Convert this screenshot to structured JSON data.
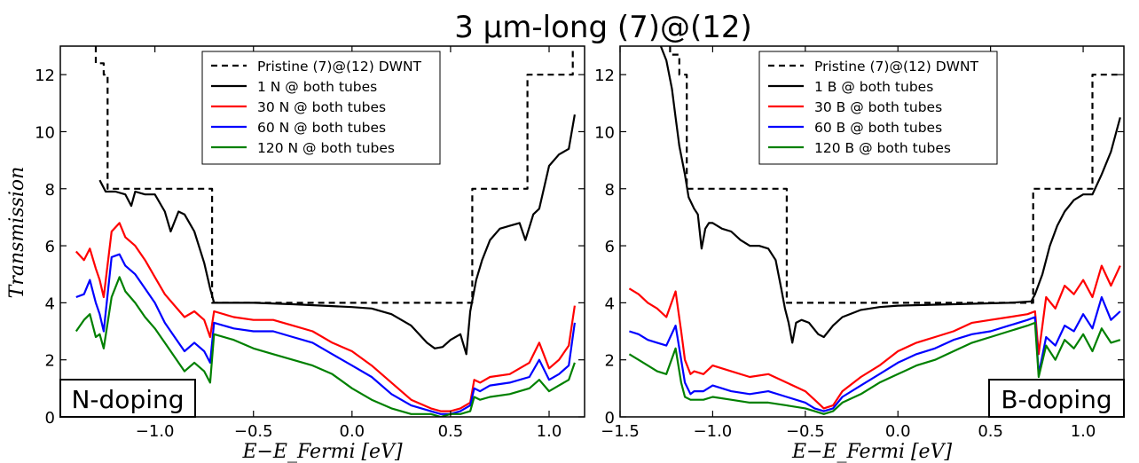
{
  "figure": {
    "title": "3 μm-long (7)@(12)",
    "ylabel": "Transmission",
    "xlabel": "E−E_Fermi [eV]"
  },
  "chart_data": [
    {
      "type": "line",
      "panel_label": "N-doping",
      "xlim": [
        -1.48,
        1.18
      ],
      "ylim": [
        0,
        13
      ],
      "xticks": [
        -1.0,
        -0.5,
        0.0,
        0.5,
        1.0
      ],
      "xtick_labels": [
        "−1.0",
        "−0.5",
        "0.0",
        "0.5",
        "1.0"
      ],
      "yticks": [
        0,
        2,
        4,
        6,
        8,
        10,
        12
      ],
      "grid": false,
      "legend_position": "top-center",
      "series": [
        {
          "name": "Pristine (7)@(12) DWNT",
          "color": "#000000",
          "dash": true,
          "x": [
            -1.3,
            -1.3,
            -1.26,
            -1.26,
            -1.24,
            -1.24,
            -0.71,
            -0.71,
            0.61,
            0.61,
            0.89,
            0.89,
            1.12,
            1.12
          ],
          "y": [
            13,
            12.4,
            12.4,
            12,
            12,
            8,
            8,
            4,
            4,
            8,
            8,
            12,
            12,
            13
          ]
        },
        {
          "name": "1 N @ both tubes",
          "color": "#000000",
          "dash": false,
          "x": [
            -1.28,
            -1.25,
            -1.2,
            -1.15,
            -1.12,
            -1.1,
            -1.05,
            -1.0,
            -0.95,
            -0.92,
            -0.88,
            -0.85,
            -0.8,
            -0.75,
            -0.72,
            -0.7,
            -0.5,
            -0.3,
            0.0,
            0.1,
            0.2,
            0.3,
            0.38,
            0.42,
            0.46,
            0.5,
            0.55,
            0.58,
            0.6,
            0.63,
            0.66,
            0.7,
            0.75,
            0.8,
            0.85,
            0.88,
            0.92,
            0.95,
            1.0,
            1.05,
            1.1,
            1.13
          ],
          "y": [
            8.3,
            7.9,
            7.9,
            7.8,
            7.4,
            7.9,
            7.8,
            7.8,
            7.2,
            6.5,
            7.2,
            7.1,
            6.5,
            5.4,
            4.5,
            4.0,
            4.0,
            3.95,
            3.85,
            3.8,
            3.6,
            3.2,
            2.6,
            2.4,
            2.45,
            2.7,
            2.9,
            2.2,
            3.7,
            4.8,
            5.5,
            6.2,
            6.6,
            6.7,
            6.8,
            6.2,
            7.1,
            7.3,
            8.8,
            9.2,
            9.4,
            10.6
          ]
        },
        {
          "name": "30 N @ both tubes",
          "color": "#ff0000",
          "dash": false,
          "x": [
            -1.4,
            -1.36,
            -1.33,
            -1.3,
            -1.28,
            -1.26,
            -1.22,
            -1.18,
            -1.15,
            -1.1,
            -1.05,
            -1.0,
            -0.95,
            -0.9,
            -0.85,
            -0.8,
            -0.75,
            -0.72,
            -0.7,
            -0.6,
            -0.5,
            -0.4,
            -0.3,
            -0.2,
            -0.1,
            0.0,
            0.1,
            0.2,
            0.3,
            0.4,
            0.45,
            0.5,
            0.55,
            0.6,
            0.62,
            0.65,
            0.7,
            0.8,
            0.9,
            0.95,
            1.0,
            1.05,
            1.1,
            1.13
          ],
          "y": [
            5.8,
            5.5,
            5.9,
            5.2,
            4.8,
            4.2,
            6.5,
            6.8,
            6.3,
            6.0,
            5.5,
            4.9,
            4.3,
            3.9,
            3.5,
            3.7,
            3.4,
            2.8,
            3.7,
            3.5,
            3.4,
            3.4,
            3.2,
            3.0,
            2.6,
            2.3,
            1.8,
            1.2,
            0.6,
            0.3,
            0.2,
            0.2,
            0.3,
            0.5,
            1.3,
            1.2,
            1.4,
            1.5,
            1.9,
            2.6,
            1.7,
            2.0,
            2.5,
            3.9
          ]
        },
        {
          "name": "60 N @ both tubes",
          "color": "#0000ff",
          "dash": false,
          "x": [
            -1.4,
            -1.36,
            -1.33,
            -1.3,
            -1.28,
            -1.26,
            -1.22,
            -1.18,
            -1.15,
            -1.1,
            -1.05,
            -1.0,
            -0.95,
            -0.9,
            -0.85,
            -0.8,
            -0.75,
            -0.72,
            -0.7,
            -0.6,
            -0.5,
            -0.4,
            -0.3,
            -0.2,
            -0.1,
            0.0,
            0.1,
            0.2,
            0.3,
            0.4,
            0.45,
            0.5,
            0.55,
            0.6,
            0.62,
            0.65,
            0.7,
            0.8,
            0.9,
            0.95,
            1.0,
            1.05,
            1.1,
            1.13
          ],
          "y": [
            4.2,
            4.3,
            4.8,
            4.0,
            3.6,
            3.0,
            5.6,
            5.7,
            5.3,
            5.0,
            4.5,
            4.0,
            3.3,
            2.8,
            2.3,
            2.6,
            2.3,
            1.9,
            3.3,
            3.1,
            3.0,
            3.0,
            2.8,
            2.6,
            2.2,
            1.8,
            1.4,
            0.8,
            0.4,
            0.2,
            0.1,
            0.1,
            0.2,
            0.4,
            1.0,
            0.9,
            1.1,
            1.2,
            1.4,
            2.0,
            1.3,
            1.5,
            1.8,
            3.3
          ]
        },
        {
          "name": "120 N @ both tubes",
          "color": "#008000",
          "dash": false,
          "x": [
            -1.4,
            -1.36,
            -1.33,
            -1.3,
            -1.28,
            -1.26,
            -1.22,
            -1.18,
            -1.15,
            -1.1,
            -1.05,
            -1.0,
            -0.95,
            -0.9,
            -0.85,
            -0.8,
            -0.75,
            -0.72,
            -0.7,
            -0.6,
            -0.5,
            -0.4,
            -0.3,
            -0.2,
            -0.1,
            0.0,
            0.1,
            0.2,
            0.3,
            0.4,
            0.45,
            0.5,
            0.55,
            0.6,
            0.62,
            0.65,
            0.7,
            0.8,
            0.9,
            0.95,
            1.0,
            1.05,
            1.1,
            1.13
          ],
          "y": [
            3.0,
            3.4,
            3.6,
            2.8,
            2.9,
            2.4,
            4.2,
            4.9,
            4.4,
            4.0,
            3.5,
            3.1,
            2.6,
            2.1,
            1.6,
            1.9,
            1.6,
            1.2,
            2.9,
            2.7,
            2.4,
            2.2,
            2.0,
            1.8,
            1.5,
            1.0,
            0.6,
            0.3,
            0.1,
            0.1,
            0.0,
            0.1,
            0.1,
            0.2,
            0.7,
            0.6,
            0.7,
            0.8,
            1.0,
            1.3,
            0.9,
            1.1,
            1.3,
            1.9
          ]
        }
      ]
    },
    {
      "type": "line",
      "panel_label": "B-doping",
      "xlim": [
        -1.5,
        1.22
      ],
      "ylim": [
        0,
        13
      ],
      "xticks": [
        -1.5,
        -1.0,
        -0.5,
        0.0,
        0.5,
        1.0
      ],
      "xtick_labels": [
        "−1.5",
        "−1.0",
        "−0.5",
        "0.0",
        "0.5",
        "1.0"
      ],
      "yticks": [
        0,
        2,
        4,
        6,
        8,
        10,
        12
      ],
      "grid": false,
      "legend_position": "top-center",
      "series": [
        {
          "name": "Pristine (7)@(12) DWNT",
          "color": "#000000",
          "dash": true,
          "x": [
            -1.23,
            -1.23,
            -1.18,
            -1.18,
            -1.14,
            -1.14,
            -0.6,
            -0.6,
            0.73,
            0.73,
            1.05,
            1.05,
            1.2
          ],
          "y": [
            13,
            12.7,
            12.7,
            12,
            12,
            8,
            8,
            4,
            4,
            8,
            8,
            12,
            12
          ]
        },
        {
          "name": "1 B @ both tubes",
          "color": "#000000",
          "dash": false,
          "x": [
            -1.28,
            -1.25,
            -1.22,
            -1.2,
            -1.18,
            -1.15,
            -1.13,
            -1.1,
            -1.08,
            -1.06,
            -1.04,
            -1.02,
            -1.0,
            -0.95,
            -0.9,
            -0.85,
            -0.8,
            -0.75,
            -0.7,
            -0.66,
            -0.63,
            -0.61,
            -0.59,
            -0.57,
            -0.55,
            -0.52,
            -0.48,
            -0.43,
            -0.4,
            -0.35,
            -0.3,
            -0.2,
            -0.1,
            0.0,
            0.3,
            0.6,
            0.72,
            0.74,
            0.78,
            0.82,
            0.86,
            0.9,
            0.95,
            1.0,
            1.05,
            1.1,
            1.15,
            1.2
          ],
          "y": [
            13,
            12.5,
            11.5,
            10.5,
            9.5,
            8.5,
            7.7,
            7.3,
            7.1,
            5.9,
            6.6,
            6.8,
            6.8,
            6.6,
            6.5,
            6.2,
            6.0,
            6.0,
            5.9,
            5.5,
            4.5,
            3.8,
            3.3,
            2.6,
            3.3,
            3.4,
            3.3,
            2.9,
            2.8,
            3.2,
            3.5,
            3.75,
            3.85,
            3.9,
            3.95,
            4.0,
            4.05,
            4.3,
            5.0,
            6.0,
            6.7,
            7.2,
            7.6,
            7.8,
            7.8,
            8.5,
            9.3,
            10.5
          ]
        },
        {
          "name": "30 B @ both tubes",
          "color": "#ff0000",
          "dash": false,
          "x": [
            -1.45,
            -1.4,
            -1.35,
            -1.3,
            -1.25,
            -1.2,
            -1.17,
            -1.15,
            -1.12,
            -1.1,
            -1.05,
            -1.0,
            -0.9,
            -0.8,
            -0.7,
            -0.6,
            -0.5,
            -0.45,
            -0.4,
            -0.35,
            -0.3,
            -0.2,
            -0.1,
            0.0,
            0.1,
            0.2,
            0.3,
            0.4,
            0.5,
            0.6,
            0.7,
            0.74,
            0.76,
            0.8,
            0.85,
            0.9,
            0.95,
            1.0,
            1.05,
            1.1,
            1.15,
            1.2
          ],
          "y": [
            4.5,
            4.3,
            4.0,
            3.8,
            3.5,
            4.4,
            3.0,
            2.0,
            1.5,
            1.6,
            1.5,
            1.8,
            1.6,
            1.4,
            1.5,
            1.2,
            0.9,
            0.6,
            0.3,
            0.4,
            0.9,
            1.4,
            1.8,
            2.3,
            2.6,
            2.8,
            3.0,
            3.3,
            3.4,
            3.5,
            3.6,
            3.7,
            2.2,
            4.2,
            3.8,
            4.6,
            4.3,
            4.8,
            4.2,
            5.3,
            4.6,
            5.3
          ]
        },
        {
          "name": "60 B @ both tubes",
          "color": "#0000ff",
          "dash": false,
          "x": [
            -1.45,
            -1.4,
            -1.35,
            -1.3,
            -1.25,
            -1.2,
            -1.17,
            -1.15,
            -1.12,
            -1.1,
            -1.05,
            -1.0,
            -0.9,
            -0.8,
            -0.7,
            -0.6,
            -0.5,
            -0.45,
            -0.4,
            -0.35,
            -0.3,
            -0.2,
            -0.1,
            0.0,
            0.1,
            0.2,
            0.3,
            0.4,
            0.5,
            0.6,
            0.7,
            0.74,
            0.76,
            0.8,
            0.85,
            0.9,
            0.95,
            1.0,
            1.05,
            1.1,
            1.15,
            1.2
          ],
          "y": [
            3.0,
            2.9,
            2.7,
            2.6,
            2.5,
            3.2,
            2.0,
            1.2,
            0.8,
            0.9,
            0.9,
            1.1,
            0.9,
            0.8,
            0.9,
            0.7,
            0.5,
            0.3,
            0.2,
            0.3,
            0.7,
            1.1,
            1.5,
            1.9,
            2.2,
            2.4,
            2.7,
            2.9,
            3.0,
            3.2,
            3.4,
            3.5,
            1.5,
            2.8,
            2.5,
            3.2,
            3.0,
            3.6,
            3.1,
            4.2,
            3.4,
            3.7
          ]
        },
        {
          "name": "120 B @ both tubes",
          "color": "#008000",
          "dash": false,
          "x": [
            -1.45,
            -1.4,
            -1.35,
            -1.3,
            -1.25,
            -1.2,
            -1.17,
            -1.15,
            -1.12,
            -1.1,
            -1.05,
            -1.0,
            -0.9,
            -0.8,
            -0.7,
            -0.6,
            -0.5,
            -0.45,
            -0.4,
            -0.35,
            -0.3,
            -0.2,
            -0.1,
            0.0,
            0.1,
            0.2,
            0.3,
            0.4,
            0.5,
            0.6,
            0.7,
            0.74,
            0.76,
            0.8,
            0.85,
            0.9,
            0.95,
            1.0,
            1.05,
            1.1,
            1.15,
            1.2
          ],
          "y": [
            2.2,
            2.0,
            1.8,
            1.6,
            1.5,
            2.4,
            1.2,
            0.7,
            0.6,
            0.6,
            0.6,
            0.7,
            0.6,
            0.5,
            0.5,
            0.4,
            0.3,
            0.2,
            0.1,
            0.2,
            0.5,
            0.8,
            1.2,
            1.5,
            1.8,
            2.0,
            2.3,
            2.6,
            2.8,
            3.0,
            3.2,
            3.3,
            1.4,
            2.5,
            2.0,
            2.7,
            2.4,
            2.9,
            2.3,
            3.1,
            2.6,
            2.7
          ]
        }
      ]
    }
  ]
}
